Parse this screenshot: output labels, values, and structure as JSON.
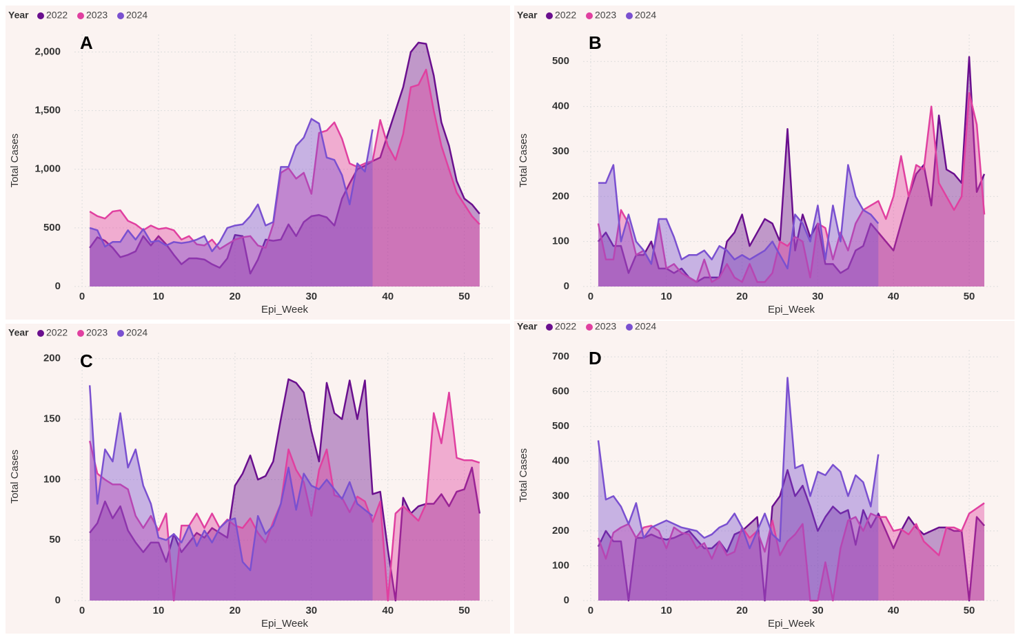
{
  "chart_data": [
    {
      "type": "area",
      "panel_label": "A",
      "legend_title": "Year",
      "xlabel": "Epi_Week",
      "ylabel": "Total Cases",
      "grid": true,
      "x": [
        1,
        2,
        3,
        4,
        5,
        6,
        7,
        8,
        9,
        10,
        11,
        12,
        13,
        14,
        15,
        16,
        17,
        18,
        19,
        20,
        21,
        22,
        23,
        24,
        25,
        26,
        27,
        28,
        29,
        30,
        31,
        32,
        33,
        34,
        35,
        36,
        37,
        38,
        39,
        40,
        41,
        42,
        43,
        44,
        45,
        46,
        47,
        48,
        49,
        50,
        51,
        52
      ],
      "xlim": [
        -1,
        54
      ],
      "xticks": [
        0,
        10,
        20,
        30,
        40,
        50
      ],
      "ylim": [
        0,
        2150
      ],
      "yticks": [
        0,
        500,
        {
          "value": 1000,
          "label": "1,000"
        },
        {
          "value": 1500,
          "label": "1,500"
        },
        {
          "value": 2000,
          "label": "2,000"
        }
      ],
      "series": [
        {
          "name": "2022",
          "color": "#6a0f8e",
          "values": [
            330,
            420,
            390,
            330,
            250,
            270,
            300,
            430,
            350,
            430,
            360,
            270,
            190,
            240,
            240,
            230,
            190,
            160,
            240,
            440,
            430,
            110,
            230,
            400,
            390,
            400,
            530,
            430,
            550,
            600,
            610,
            590,
            520,
            750,
            880,
            1000,
            1030,
            1070,
            1100,
            1300,
            1500,
            1700,
            2000,
            2080,
            2070,
            1800,
            1400,
            1200,
            900,
            750,
            700,
            620
          ]
        },
        {
          "name": "2023",
          "color": "#e040a0",
          "values": [
            640,
            600,
            580,
            640,
            650,
            560,
            530,
            480,
            520,
            490,
            500,
            480,
            400,
            430,
            360,
            350,
            400,
            320,
            360,
            400,
            420,
            430,
            350,
            330,
            530,
            970,
            1010,
            920,
            970,
            790,
            1310,
            1330,
            1400,
            1260,
            1050,
            1020,
            1050,
            1070,
            1420,
            1200,
            1080,
            1300,
            1700,
            1720,
            1850,
            1500,
            1200,
            1000,
            800,
            700,
            600,
            530
          ]
        },
        {
          "name": "2024",
          "color": "#7a50d0",
          "values": [
            500,
            480,
            340,
            380,
            380,
            480,
            400,
            490,
            380,
            390,
            350,
            380,
            370,
            380,
            400,
            430,
            300,
            380,
            500,
            520,
            530,
            600,
            700,
            520,
            550,
            1020,
            1020,
            1200,
            1270,
            1430,
            1390,
            1100,
            1080,
            950,
            700,
            1050,
            980,
            1340,
            null,
            null,
            null,
            null,
            null,
            null,
            null,
            null,
            null,
            null,
            null,
            null,
            null,
            null
          ]
        }
      ]
    },
    {
      "type": "area",
      "panel_label": "B",
      "legend_title": "Year",
      "xlabel": "Epi_Week",
      "ylabel": "Total Cases",
      "grid": true,
      "x": [
        1,
        2,
        3,
        4,
        5,
        6,
        7,
        8,
        9,
        10,
        11,
        12,
        13,
        14,
        15,
        16,
        17,
        18,
        19,
        20,
        21,
        22,
        23,
        24,
        25,
        26,
        27,
        28,
        29,
        30,
        31,
        32,
        33,
        34,
        35,
        36,
        37,
        38,
        39,
        40,
        41,
        42,
        43,
        44,
        45,
        46,
        47,
        48,
        49,
        50,
        51,
        52
      ],
      "xlim": [
        -1,
        54
      ],
      "xticks": [
        0,
        10,
        20,
        30,
        40,
        50
      ],
      "ylim": [
        0,
        560
      ],
      "yticks": [
        0,
        100,
        200,
        300,
        400,
        500
      ],
      "series": [
        {
          "name": "2022",
          "color": "#6a0f8e",
          "values": [
            100,
            120,
            90,
            90,
            30,
            70,
            70,
            100,
            40,
            40,
            30,
            40,
            20,
            10,
            20,
            20,
            20,
            100,
            120,
            160,
            90,
            120,
            150,
            140,
            100,
            350,
            80,
            160,
            110,
            140,
            50,
            50,
            30,
            40,
            80,
            90,
            140,
            120,
            100,
            80,
            140,
            200,
            250,
            270,
            180,
            380,
            260,
            250,
            230,
            510,
            210,
            250
          ]
        },
        {
          "name": "2023",
          "color": "#e040a0",
          "values": [
            140,
            60,
            60,
            170,
            140,
            70,
            80,
            50,
            140,
            40,
            50,
            30,
            20,
            10,
            60,
            10,
            20,
            50,
            20,
            10,
            50,
            10,
            10,
            30,
            100,
            90,
            110,
            100,
            20,
            140,
            130,
            60,
            120,
            80,
            140,
            170,
            180,
            190,
            150,
            200,
            290,
            200,
            270,
            260,
            400,
            230,
            200,
            170,
            200,
            430,
            360,
            160
          ]
        },
        {
          "name": "2024",
          "color": "#7a50d0",
          "values": [
            230,
            230,
            270,
            100,
            160,
            100,
            80,
            50,
            150,
            150,
            110,
            60,
            70,
            70,
            80,
            60,
            90,
            80,
            60,
            70,
            60,
            70,
            80,
            100,
            70,
            40,
            160,
            140,
            100,
            180,
            60,
            180,
            100,
            270,
            200,
            170,
            160,
            140,
            null,
            null,
            null,
            null,
            null,
            null,
            null,
            null,
            null,
            null,
            null,
            null,
            null,
            null
          ]
        }
      ]
    },
    {
      "type": "area",
      "panel_label": "C",
      "legend_title": "Year",
      "xlabel": "Epi_Week",
      "ylabel": "Total Cases",
      "grid": true,
      "x": [
        1,
        2,
        3,
        4,
        5,
        6,
        7,
        8,
        9,
        10,
        11,
        12,
        13,
        14,
        15,
        16,
        17,
        18,
        19,
        20,
        21,
        22,
        23,
        24,
        25,
        26,
        27,
        28,
        29,
        30,
        31,
        32,
        33,
        34,
        35,
        36,
        37,
        38,
        39,
        40,
        41,
        42,
        43,
        44,
        45,
        46,
        47,
        48,
        49,
        50,
        51,
        52
      ],
      "xlim": [
        -1,
        54
      ],
      "xticks": [
        0,
        10,
        20,
        30,
        40,
        50
      ],
      "ylim": [
        0,
        205
      ],
      "yticks": [
        0,
        50,
        100,
        150,
        200
      ],
      "series": [
        {
          "name": "2022",
          "color": "#6a0f8e",
          "values": [
            56,
            64,
            82,
            68,
            78,
            58,
            48,
            40,
            48,
            48,
            32,
            55,
            40,
            48,
            56,
            52,
            60,
            56,
            52,
            95,
            105,
            120,
            100,
            103,
            115,
            150,
            183,
            180,
            172,
            140,
            115,
            180,
            155,
            150,
            182,
            150,
            182,
            88,
            90,
            42,
            0,
            85,
            72,
            78,
            80,
            80,
            88,
            78,
            90,
            92,
            110,
            72
          ]
        },
        {
          "name": "2023",
          "color": "#e040a0",
          "values": [
            132,
            105,
            100,
            96,
            96,
            92,
            70,
            60,
            70,
            58,
            72,
            0,
            62,
            62,
            72,
            60,
            72,
            60,
            67,
            62,
            60,
            68,
            56,
            48,
            65,
            80,
            125,
            108,
            98,
            70,
            108,
            125,
            87,
            85,
            73,
            86,
            82,
            65,
            82,
            0,
            72,
            78,
            72,
            66,
            80,
            155,
            130,
            172,
            118,
            116,
            116,
            114
          ]
        },
        {
          "name": "2024",
          "color": "#7a50d0",
          "values": [
            178,
            80,
            125,
            115,
            155,
            110,
            125,
            95,
            80,
            52,
            50,
            55,
            48,
            62,
            45,
            58,
            48,
            60,
            66,
            68,
            32,
            25,
            70,
            55,
            62,
            80,
            110,
            75,
            105,
            95,
            92,
            100,
            92,
            84,
            98,
            80,
            75,
            70,
            null,
            null,
            null,
            null,
            null,
            null,
            null,
            null,
            null,
            null,
            null,
            null,
            null,
            null
          ]
        }
      ]
    },
    {
      "type": "area",
      "panel_label": "D",
      "legend_title": "Year",
      "xlabel": "Epi_Week",
      "ylabel": "Total Cases",
      "grid": true,
      "x": [
        1,
        2,
        3,
        4,
        5,
        6,
        7,
        8,
        9,
        10,
        11,
        12,
        13,
        14,
        15,
        16,
        17,
        18,
        19,
        20,
        21,
        22,
        23,
        24,
        25,
        26,
        27,
        28,
        29,
        30,
        31,
        32,
        33,
        34,
        35,
        36,
        37,
        38,
        39,
        40,
        41,
        42,
        43,
        44,
        45,
        46,
        47,
        48,
        49,
        50,
        51,
        52
      ],
      "xlim": [
        -1,
        54
      ],
      "xticks": [
        0,
        10,
        20,
        30,
        40,
        50
      ],
      "ylim": [
        0,
        720
      ],
      "yticks": [
        0,
        100,
        200,
        300,
        400,
        500,
        600,
        700
      ],
      "series": [
        {
          "name": "2022",
          "color": "#6a0f8e",
          "values": [
            155,
            200,
            170,
            170,
            0,
            180,
            180,
            190,
            180,
            175,
            180,
            190,
            200,
            175,
            150,
            150,
            170,
            140,
            190,
            200,
            220,
            240,
            0,
            270,
            300,
            375,
            300,
            330,
            270,
            200,
            240,
            270,
            250,
            260,
            160,
            260,
            210,
            250,
            200,
            150,
            200,
            240,
            210,
            190,
            200,
            210,
            210,
            200,
            200,
            0,
            240,
            215
          ]
        },
        {
          "name": "2023",
          "color": "#e040a0",
          "values": [
            180,
            120,
            195,
            210,
            220,
            180,
            210,
            215,
            200,
            150,
            210,
            195,
            190,
            150,
            165,
            120,
            170,
            130,
            140,
            210,
            180,
            200,
            140,
            230,
            130,
            170,
            190,
            220,
            0,
            0,
            110,
            0,
            150,
            230,
            240,
            200,
            250,
            240,
            240,
            200,
            205,
            190,
            220,
            170,
            150,
            130,
            210,
            210,
            200,
            250,
            265,
            280
          ]
        },
        {
          "name": "2024",
          "color": "#7a50d0",
          "values": [
            460,
            290,
            300,
            270,
            220,
            280,
            180,
            210,
            220,
            230,
            220,
            210,
            205,
            200,
            180,
            190,
            210,
            220,
            250,
            210,
            150,
            200,
            250,
            190,
            170,
            640,
            380,
            390,
            300,
            370,
            360,
            390,
            370,
            300,
            360,
            340,
            270,
            420,
            null,
            null,
            null,
            null,
            null,
            null,
            null,
            null,
            null,
            null,
            null,
            null,
            null,
            null
          ]
        }
      ]
    }
  ]
}
